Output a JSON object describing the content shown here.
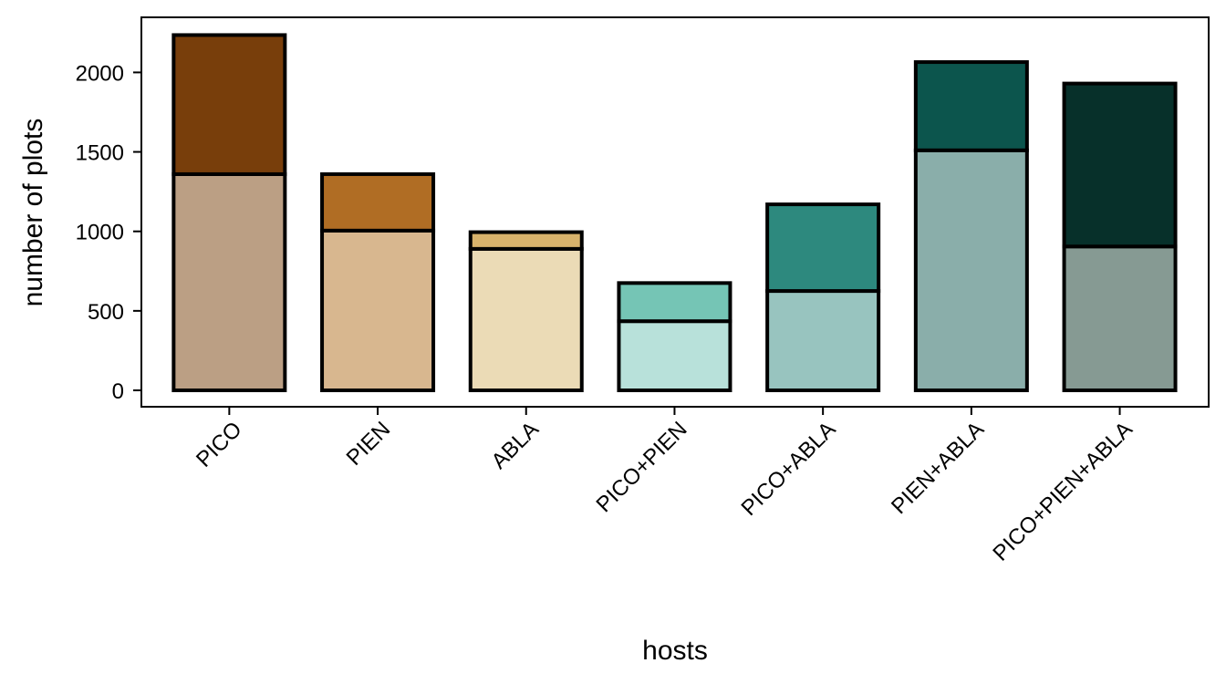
{
  "chart_data": {
    "type": "bar",
    "stacked": true,
    "xlabel": "hosts",
    "ylabel": "number of plots",
    "categories": [
      "PICO",
      "PIEN",
      "ABLA",
      "PICO+PIEN",
      "PICO+ABLA",
      "PIEN+ABLA",
      "PICO+PIEN+ABLA"
    ],
    "series": [
      {
        "values": [
          1360,
          1005,
          890,
          435,
          625,
          1510,
          905
        ]
      },
      {
        "values": [
          875,
          355,
          105,
          240,
          545,
          555,
          1025
        ]
      }
    ],
    "ylim": [
      0,
      2250
    ],
    "yticks": [
      0,
      500,
      1000,
      1500,
      2000
    ],
    "grid": false,
    "legend": "none",
    "colors": {
      "lower": [
        "#bb9f84",
        "#d8b78f",
        "#ebdbb6",
        "#b8e1da",
        "#98c4bf",
        "#8aaeaa",
        "#869a93"
      ],
      "upper": [
        "#783e0b",
        "#b06d24",
        "#d8b36c",
        "#75c5b5",
        "#2d897e",
        "#0c554d",
        "#07302a"
      ],
      "outline": "#000000"
    }
  }
}
